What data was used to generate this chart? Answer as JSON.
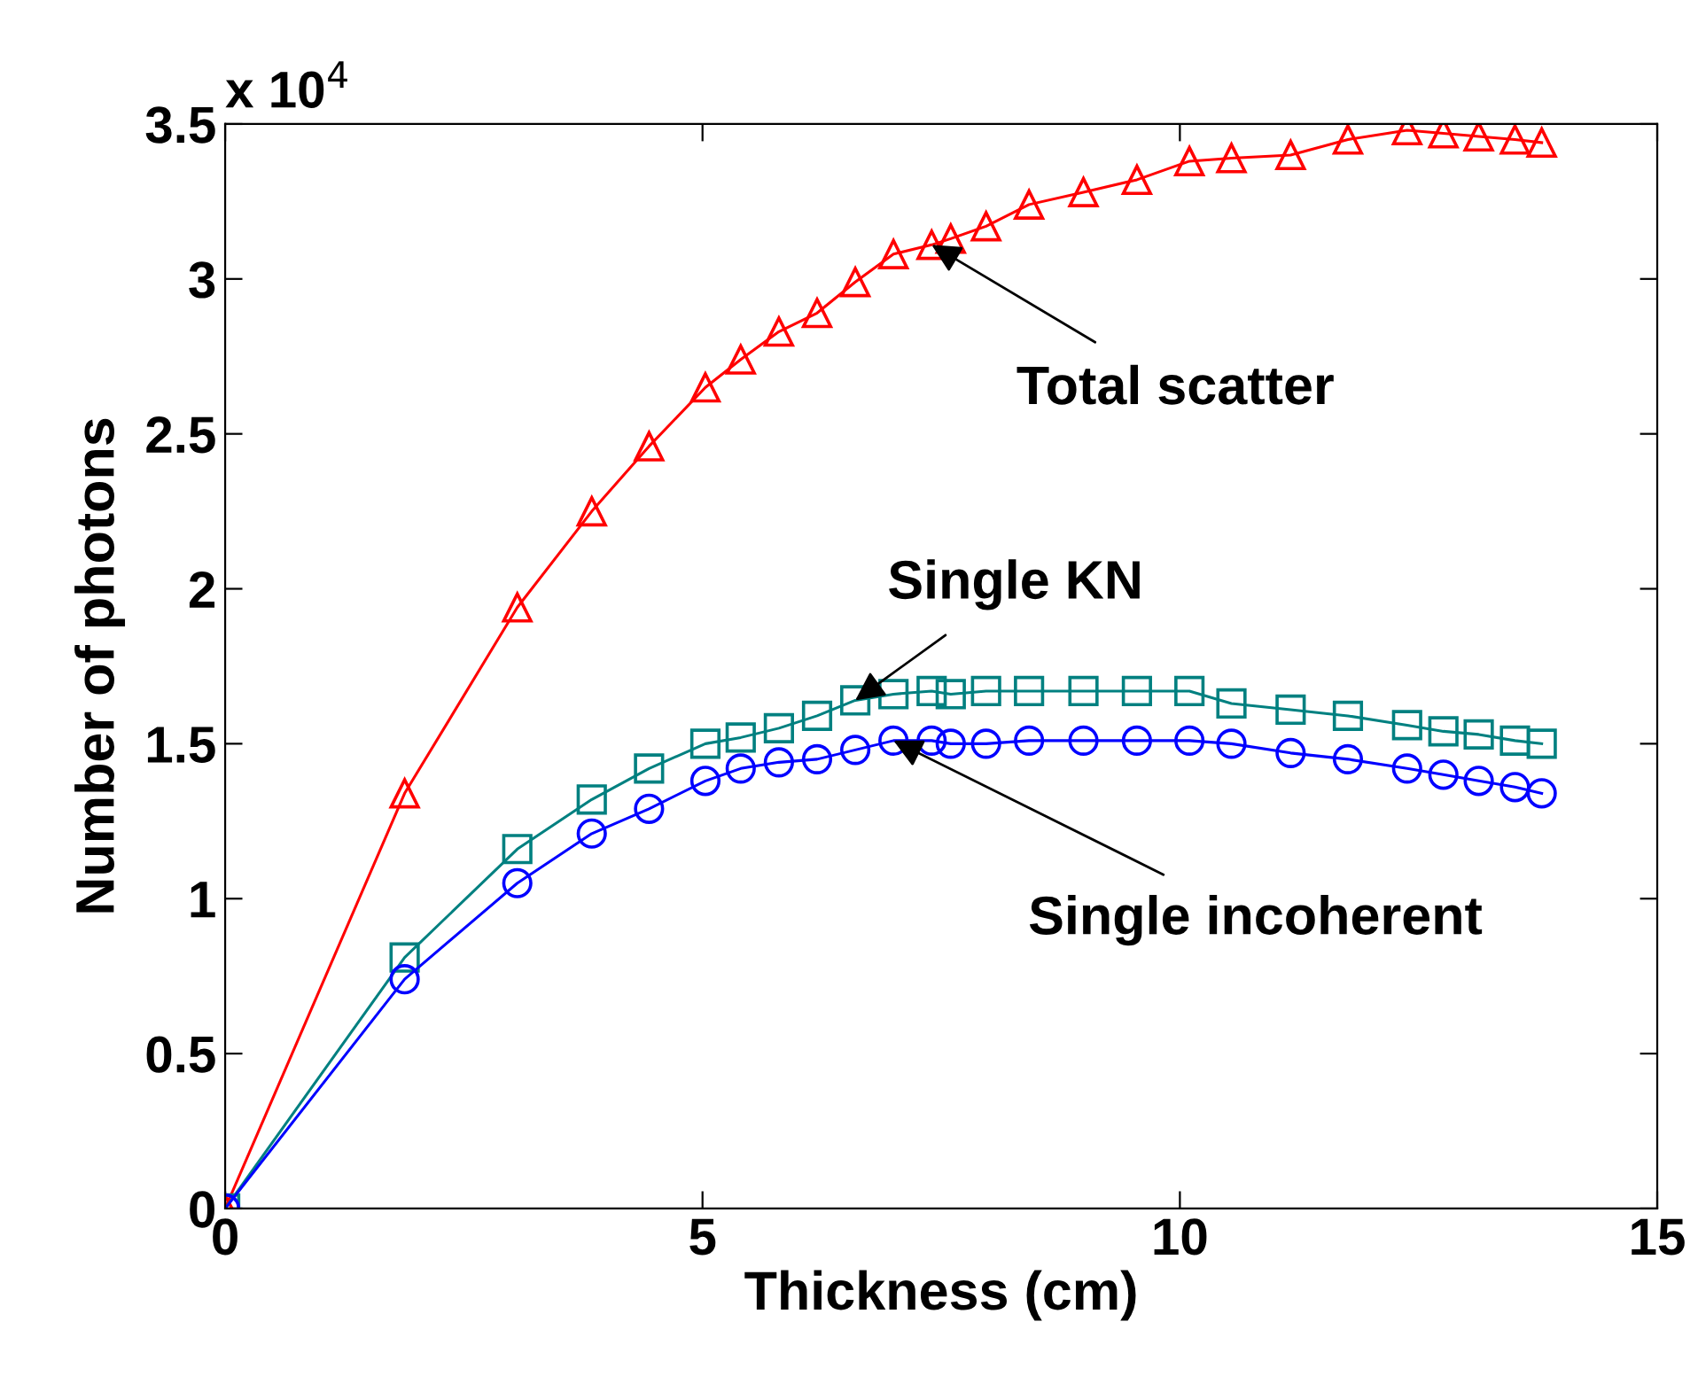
{
  "chart_data": {
    "type": "line",
    "xlabel": "Thickness (cm)",
    "ylabel": "Number of photons",
    "x": [
      0,
      1.88,
      3.06,
      3.84,
      4.44,
      5.03,
      5.4,
      5.8,
      6.2,
      6.6,
      7.0,
      7.4,
      7.6,
      7.97,
      8.42,
      8.99,
      9.55,
      10.1,
      10.54,
      11.16,
      11.76,
      12.38,
      12.76,
      13.13,
      13.51,
      13.79
    ],
    "series": [
      {
        "color": "#ff0000",
        "marker": "triangle",
        "values": [
          0,
          1.34,
          1.94,
          2.25,
          2.46,
          2.65,
          2.74,
          2.83,
          2.89,
          2.99,
          3.08,
          3.11,
          3.13,
          3.17,
          3.24,
          3.28,
          3.32,
          3.38,
          3.39,
          3.4,
          3.45,
          3.48,
          3.47,
          3.46,
          3.45,
          3.44
        ]
      },
      {
        "color": "#008080",
        "marker": "square",
        "values": [
          0,
          0.81,
          1.16,
          1.32,
          1.42,
          1.5,
          1.52,
          1.55,
          1.59,
          1.64,
          1.66,
          1.67,
          1.66,
          1.67,
          1.67,
          1.67,
          1.67,
          1.67,
          1.63,
          1.61,
          1.59,
          1.56,
          1.54,
          1.53,
          1.51,
          1.5
        ]
      },
      {
        "color": "#0000ff",
        "marker": "circle",
        "values": [
          0,
          0.74,
          1.05,
          1.21,
          1.29,
          1.38,
          1.42,
          1.44,
          1.45,
          1.48,
          1.51,
          1.51,
          1.5,
          1.5,
          1.51,
          1.51,
          1.51,
          1.51,
          1.5,
          1.47,
          1.45,
          1.42,
          1.4,
          1.38,
          1.36,
          1.34
        ]
      }
    ],
    "xlim": [
      0,
      15
    ],
    "xticks": [
      0,
      5,
      10,
      15
    ],
    "ylim": [
      0,
      3.5
    ],
    "yticks": [
      0,
      0.5,
      1,
      1.5,
      2,
      2.5,
      3,
      3.5
    ],
    "annotations": [
      "x 10$^{4}$",
      {
        "text": "Total scatter",
        "x": 7.4,
        "y": 3.11
      },
      {
        "text": "Single KN",
        "x": 6.6,
        "y": 1.64
      },
      {
        "text": "Single incoherent",
        "x": 7.0,
        "y": 1.51
      }
    ],
    "grid": false,
    "legend": false
  }
}
